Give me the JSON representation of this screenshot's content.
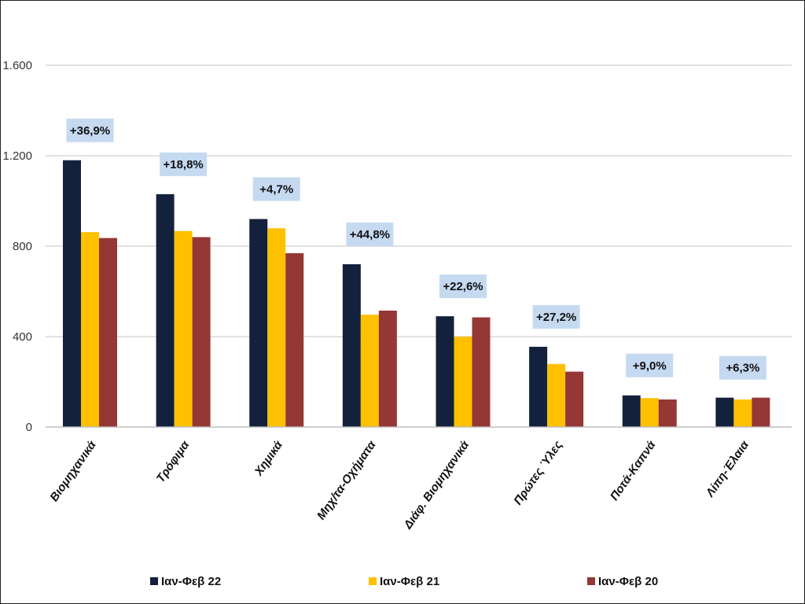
{
  "chart_data": {
    "type": "bar",
    "title": "",
    "xlabel": "",
    "ylabel": "",
    "ylim": [
      0,
      1600
    ],
    "yticks": [
      0,
      400,
      800,
      1200,
      1600
    ],
    "ytick_labels": [
      "0",
      "400",
      "800",
      "1.200",
      "1.600"
    ],
    "grid": true,
    "legend_position": "bottom",
    "categories": [
      "Βιομηχανικά",
      "Τρόφιμα",
      "Χημικά",
      "Μηχ/τα-Οχήματα",
      "Διάφ. Βιομηχανικά",
      "Πρώτες Ύλες",
      "Ποτά-Καπνά",
      "Λίπη-Έλαια"
    ],
    "series": [
      {
        "name": "Ιαν-Φεβ 22",
        "color": "#14213d",
        "values": [
          1180,
          1030,
          920,
          720,
          490,
          355,
          140,
          130
        ]
      },
      {
        "name": "Ιαν-Φεβ 21",
        "color": "#ffc000",
        "values": [
          862,
          867,
          879,
          497,
          400,
          279,
          128,
          122
        ]
      },
      {
        "name": "Ιαν-Φεβ 20",
        "color": "#953735",
        "values": [
          836,
          840,
          769,
          515,
          485,
          245,
          122,
          130
        ]
      }
    ],
    "annotations": [
      "+36,9%",
      "+18,8%",
      "+4,7%",
      "+44,8%",
      "+22,6%",
      "+27,2%",
      "+9,0%",
      "+6,3%"
    ],
    "annotation_color": "#c5d9f1"
  }
}
